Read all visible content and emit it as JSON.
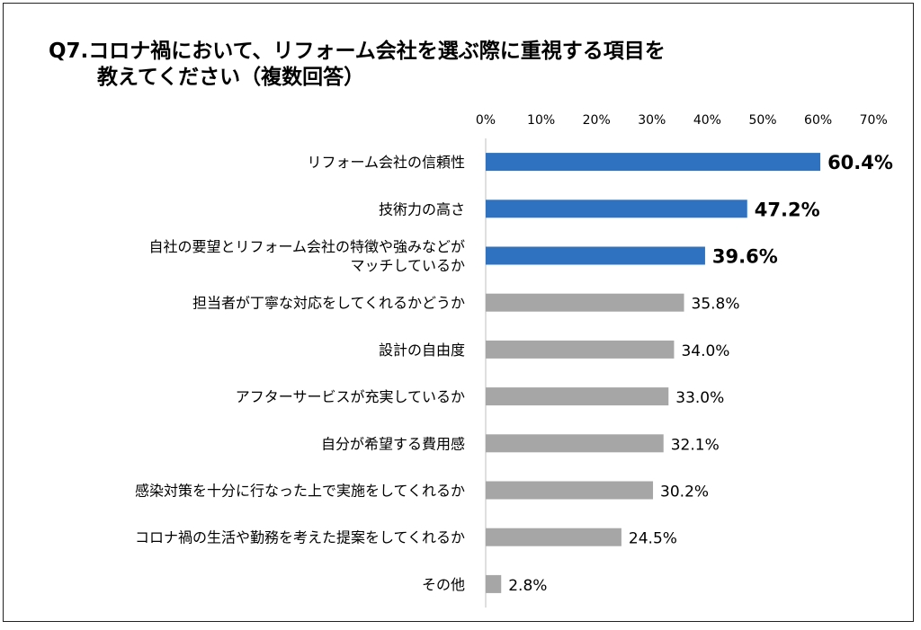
{
  "chart_data": {
    "type": "bar",
    "orientation": "horizontal",
    "title_line1": "Q7.コロナ禍において、リフォーム会社を選ぶ際に重視する項目を",
    "title_line2": "教えてください（複数回答）",
    "xlim": [
      0,
      70
    ],
    "xticks": [
      "0%",
      "10%",
      "20%",
      "30%",
      "40%",
      "50%",
      "60%",
      "70%"
    ],
    "tick_values": [
      0,
      10,
      20,
      30,
      40,
      50,
      60,
      70
    ],
    "categories": [
      [
        "リフォーム会社の信頼性"
      ],
      [
        "技術力の高さ"
      ],
      [
        "自社の要望とリフォーム会社の特徴や強みなどが",
        "マッチしているか"
      ],
      [
        "担当者が丁寧な対応をしてくれるかどうか"
      ],
      [
        "設計の自由度"
      ],
      [
        "アフターサービスが充実しているか"
      ],
      [
        "自分が希望する費用感"
      ],
      [
        "感染対策を十分に行なった上で実施をしてくれるか"
      ],
      [
        "コロナ禍の生活や勤務を考えた提案をしてくれるか"
      ],
      [
        "その他"
      ]
    ],
    "values": [
      60.4,
      47.2,
      39.6,
      35.8,
      34.0,
      33.0,
      32.1,
      30.2,
      24.5,
      2.8
    ],
    "labels": [
      "60.4%",
      "47.2%",
      "39.6%",
      "35.8%",
      "34.0%",
      "33.0%",
      "32.1%",
      "30.2%",
      "24.5%",
      "2.8%"
    ],
    "highlight_count": 3,
    "colors": {
      "highlight": "#2E72C0",
      "normal": "#A6A6A6",
      "axis": "#BFBFBF"
    },
    "grid": false,
    "legend": "none"
  }
}
